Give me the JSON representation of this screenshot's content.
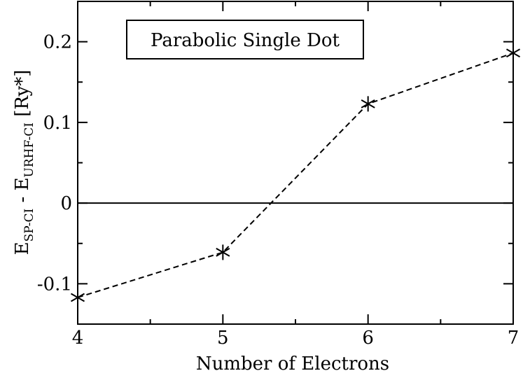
{
  "chart_data": {
    "type": "line",
    "title": "Parabolic Single Dot",
    "xlabel": "Number of Electrons",
    "ylabel": {
      "main1": "E",
      "sub1": "SP-CI",
      "mid": " - E",
      "sub2": "URHF-CI",
      "unit": " [Ry*]"
    },
    "x": [
      4,
      5,
      6,
      7
    ],
    "series": [
      {
        "values": [
          -0.117,
          -0.061,
          0.123,
          0.186
        ]
      }
    ],
    "xlim": [
      4,
      7
    ],
    "ylim": [
      -0.15,
      0.25
    ],
    "xticks": [
      "4",
      "5",
      "6",
      "7"
    ],
    "yticks": [
      {
        "value": -0.1,
        "label": "-0.1"
      },
      {
        "value": 0,
        "label": "0"
      },
      {
        "value": 0.1,
        "label": "0.1"
      },
      {
        "value": 0.2,
        "label": "0.2"
      }
    ],
    "reference_line_y": 0,
    "marker": "asterisk",
    "line_style": "dashed",
    "line_color": "#000000",
    "grid": false,
    "legend": "top-left"
  }
}
